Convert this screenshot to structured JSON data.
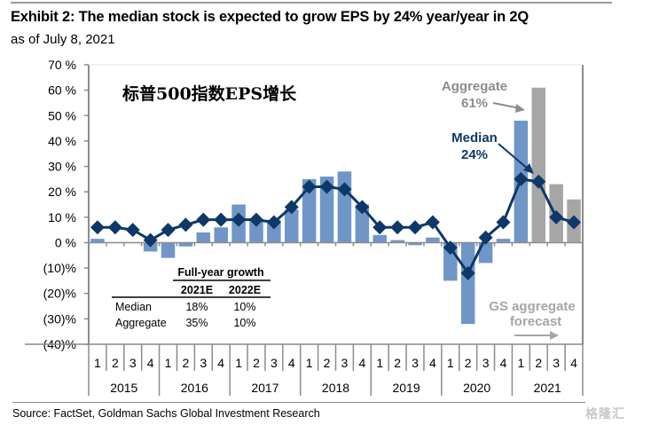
{
  "header": {
    "title": "Exhibit 2: The median stock is expected to grow EPS by 24% year/year in 2Q",
    "subtitle": "as of July 8, 2021"
  },
  "footer": {
    "source": "Source: FactSet, Goldman Sachs Global Investment Research",
    "watermark": "格隆汇"
  },
  "chart_data": {
    "type": "bar",
    "overlay_text": "标普500指数EPS增长",
    "ylim": [
      -40,
      70
    ],
    "yticks": [
      70,
      60,
      50,
      40,
      30,
      20,
      10,
      0,
      -10,
      -20,
      -30,
      -40
    ],
    "ytick_labels": [
      "70 %",
      "60 %",
      "50 %",
      "40 %",
      "30 %",
      "20 %",
      "10 %",
      "0 %",
      "(10)%",
      "(20)%",
      "(30)%",
      "(40)%"
    ],
    "years": [
      "2015",
      "2016",
      "2017",
      "2018",
      "2019",
      "2020",
      "2021"
    ],
    "quarters": [
      "1",
      "2",
      "3",
      "4"
    ],
    "series": [
      {
        "name": "Aggregate",
        "kind": "bar",
        "color": "#7096c8",
        "forecast_color": "#a6a6a6",
        "forecast_from_index": 25,
        "values": [
          1.5,
          0,
          0,
          -3.5,
          -6,
          -1.5,
          4,
          6,
          15,
          9,
          9,
          13,
          25,
          26,
          28,
          15,
          3,
          1,
          -1,
          2,
          -15,
          -32,
          -8,
          1.5,
          48,
          61,
          23,
          17
        ]
      },
      {
        "name": "Median",
        "kind": "line",
        "color": "#0d3868",
        "values": [
          6,
          6,
          5,
          1,
          5,
          7,
          9,
          9,
          9,
          9,
          8,
          14,
          22,
          22,
          21,
          14,
          6,
          6,
          6,
          8,
          -2,
          -12,
          2,
          8,
          25,
          24,
          10,
          8
        ]
      }
    ],
    "annotations": {
      "aggregate_label": "Aggregate",
      "aggregate_value": "61%",
      "median_label": "Median",
      "median_value": "24%",
      "forecast_line1": "GS  aggregate",
      "forecast_line2": "forecast"
    },
    "table": {
      "title": "Full-year growth",
      "columns": [
        "2021E",
        "2022E"
      ],
      "rows": [
        {
          "label": "Median",
          "values": [
            "18%",
            "10%"
          ]
        },
        {
          "label": "Aggregate",
          "values": [
            "35%",
            "10%"
          ]
        }
      ]
    }
  }
}
